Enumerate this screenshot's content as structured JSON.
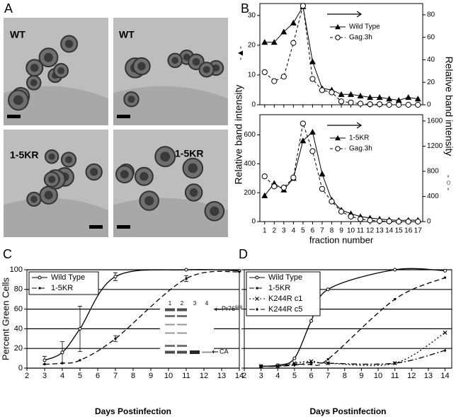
{
  "panel_labels": [
    "A",
    "B",
    "C",
    "D"
  ],
  "micrographs": {
    "labels": [
      "WT",
      "WT",
      "1-5KR",
      "1-5KR"
    ]
  },
  "chart_data": [
    {
      "type": "line",
      "x": [
        1,
        2,
        3,
        4,
        5,
        6,
        7,
        8,
        9,
        10,
        11,
        12,
        13,
        14,
        15,
        16,
        17
      ],
      "xlim": [
        0.5,
        17.5
      ],
      "xticks": [
        1,
        2,
        3,
        4,
        5,
        6,
        7,
        8,
        9,
        10,
        11,
        12,
        13,
        14,
        15,
        16,
        17
      ],
      "show_xtick_labels": false,
      "ylim": [
        0,
        34
      ],
      "yticks": [
        0,
        10,
        20,
        30
      ],
      "y2lim": [
        0,
        90
      ],
      "y2ticks": [
        0,
        20,
        40,
        60,
        80
      ],
      "y_label": "Relative band intensity",
      "y_symbol": "-▲-",
      "legend": "top-center",
      "series": [
        {
          "name": "Wild Type",
          "color": "#000000",
          "marker": "triangle",
          "dash": "solid",
          "values": [
            21,
            21,
            24.5,
            27.5,
            33,
            14.5,
            5.5,
            5,
            3.5,
            3.5,
            3,
            2.5,
            2.5,
            2,
            1.5,
            2.5,
            2
          ]
        },
        {
          "name": "Gag.3h",
          "color": "#000000",
          "marker": "circle",
          "dash": "dashed",
          "axis": "y2",
          "values": [
            29,
            21,
            25,
            55,
            88,
            23,
            13,
            11,
            3,
            2,
            1,
            0.5,
            0.5,
            0,
            0,
            0,
            0
          ]
        }
      ]
    },
    {
      "type": "line",
      "x": [
        1,
        2,
        3,
        4,
        5,
        6,
        7,
        8,
        9,
        10,
        11,
        12,
        13,
        14,
        15,
        16,
        17
      ],
      "xlim": [
        0.5,
        17.5
      ],
      "xticks": [
        1,
        2,
        3,
        4,
        5,
        6,
        7,
        8,
        9,
        10,
        11,
        12,
        13,
        14,
        15,
        16,
        17
      ],
      "show_xtick_labels": true,
      "x_label": "fraction number",
      "ylim": [
        0,
        740
      ],
      "yticks": [
        0,
        200,
        400,
        600
      ],
      "y2lim": [
        0,
        1700
      ],
      "y2ticks": [
        0,
        400,
        800,
        1200,
        1600
      ],
      "y2_label": "Relative band intensity",
      "y2_symbol": "- ○ -",
      "legend": "top-center",
      "series": [
        {
          "name": "1-5KR",
          "color": "#000000",
          "marker": "triangle",
          "dash": "solid",
          "values": [
            180,
            265,
            220,
            300,
            560,
            620,
            330,
            150,
            80,
            55,
            35,
            25,
            18,
            12,
            8,
            10,
            10
          ]
        },
        {
          "name": "Gag.3h",
          "color": "#000000",
          "marker": "circle",
          "dash": "dashed",
          "axis": "y2",
          "values": [
            720,
            560,
            540,
            700,
            1560,
            1120,
            520,
            320,
            160,
            80,
            40,
            20,
            10,
            5,
            0,
            0,
            0
          ]
        }
      ]
    },
    {
      "type": "line",
      "x": [
        3,
        4,
        5,
        7,
        11,
        14
      ],
      "xlim": [
        2,
        14
      ],
      "xticks": [
        2,
        3,
        4,
        5,
        6,
        7,
        8,
        9,
        10,
        11,
        12,
        13,
        14
      ],
      "show_xtick_labels": true,
      "ylim": [
        0,
        100
      ],
      "yticks": [
        0,
        20,
        40,
        60,
        80,
        100
      ],
      "show_ytick_labels": true,
      "grid": true,
      "smooth": true,
      "y_label": "Percent Green Cells",
      "x_label": "Days Postinfection",
      "legend": "top-left",
      "series": [
        {
          "name": "Wild Type",
          "color": "#000000",
          "marker": "circle",
          "dash": "solid",
          "values": [
            8,
            16,
            40,
            93,
            100,
            99
          ],
          "errors": [
            4,
            11,
            23,
            4,
            null,
            null
          ]
        },
        {
          "name": "1-5KR",
          "color": "#000000",
          "marker": "square",
          "dash": "long-dash",
          "values": [
            4,
            5,
            8,
            30,
            91,
            98
          ],
          "errors": [
            null,
            null,
            null,
            3,
            3,
            null
          ]
        }
      ],
      "inset": {
        "lane_labels": [
          "1",
          "2",
          "3",
          "4"
        ],
        "upper_band": {
          "main": "Pr76",
          "sup": "gag"
        },
        "lower_band": "CA"
      }
    },
    {
      "type": "line",
      "x": [
        3,
        4,
        5,
        6,
        7,
        11,
        14
      ],
      "xlim": [
        2,
        14.4
      ],
      "xticks": [
        2,
        3,
        4,
        5,
        6,
        7,
        8,
        9,
        10,
        11,
        12,
        13,
        14
      ],
      "show_xtick_labels": true,
      "ylim": [
        0,
        100
      ],
      "yticks": [
        0,
        20,
        40,
        60,
        80,
        100
      ],
      "show_ytick_labels": false,
      "grid": true,
      "smooth": true,
      "x_label": "Days Postinfection",
      "legend": "top-left",
      "series": [
        {
          "name": "Wild Type",
          "color": "#000000",
          "marker": "circle",
          "dash": "solid",
          "values": [
            2,
            3,
            10,
            48,
            80,
            100,
            99
          ]
        },
        {
          "name": "1-5KR",
          "color": "#000000",
          "marker": "square",
          "dash": "long-dash",
          "values": [
            2,
            2,
            4,
            4,
            9,
            70,
            92
          ]
        },
        {
          "name": "K244R c1",
          "color": "#000000",
          "marker": "x",
          "dash": "dotted",
          "values": [
            2,
            2,
            5,
            7,
            5,
            5,
            36
          ]
        },
        {
          "name": "K244R c5",
          "color": "#000000",
          "marker": "diamond",
          "dash": "dash-dot",
          "values": [
            2,
            2,
            3,
            6,
            5,
            5,
            18
          ]
        }
      ]
    }
  ]
}
